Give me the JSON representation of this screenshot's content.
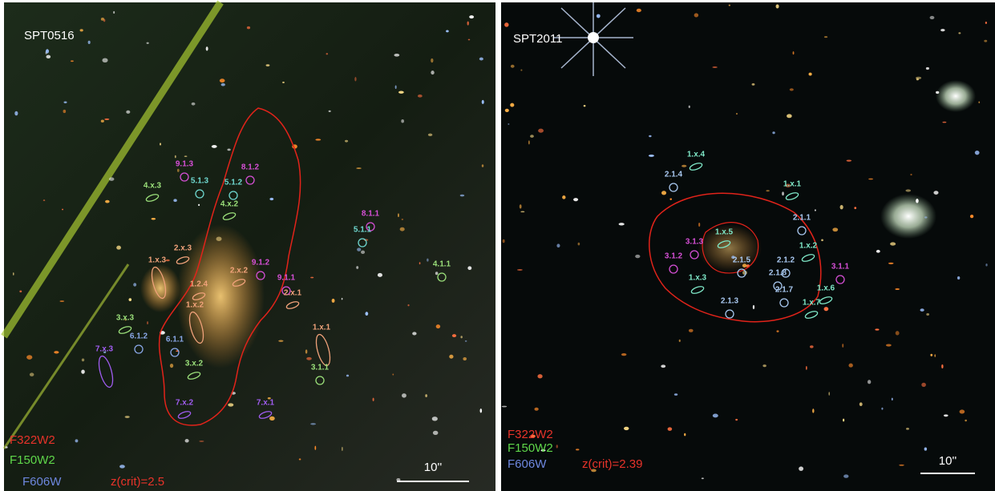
{
  "panels": [
    {
      "name": "SPT0516",
      "filters": [
        "F322W2",
        "F150W2",
        "F606W"
      ],
      "critical_curve": "z(crit)=2.5",
      "scale_bar": "10''",
      "labels": [
        "9.1.3",
        "8.1.2",
        "4.x.3",
        "5.1.3",
        "5.1.2",
        "4.x.2",
        "8.1.1",
        "5.1.1",
        "4.1.1",
        "2.x.3",
        "1.x.3",
        "2.x.2",
        "9.1.2",
        "9.1.1",
        "1.2.4",
        "2.x.1",
        "1.x.2",
        "3.x.3",
        "6.1.2",
        "6.1.1",
        "1.x.1",
        "7.x.3",
        "3.x.2",
        "3.1.1",
        "7.x.2",
        "7.x.1"
      ]
    },
    {
      "name": "SPT2011",
      "filters": [
        "F322W2",
        "F150W2",
        "F606W"
      ],
      "critical_curve": "z(crit)=2.39",
      "scale_bar": "10''",
      "labels": [
        "1.x.4",
        "2.1.4",
        "1.x.1",
        "2.1.1",
        "1.x.5",
        "3.1.3",
        "1.x.2",
        "3.1.2",
        "2.1.5",
        "2.1.2",
        "3.1.1",
        "2.1.8",
        "1.x.3",
        "2.1.7",
        "1.x.6",
        "2.1.3",
        "1.x.7"
      ]
    }
  ]
}
